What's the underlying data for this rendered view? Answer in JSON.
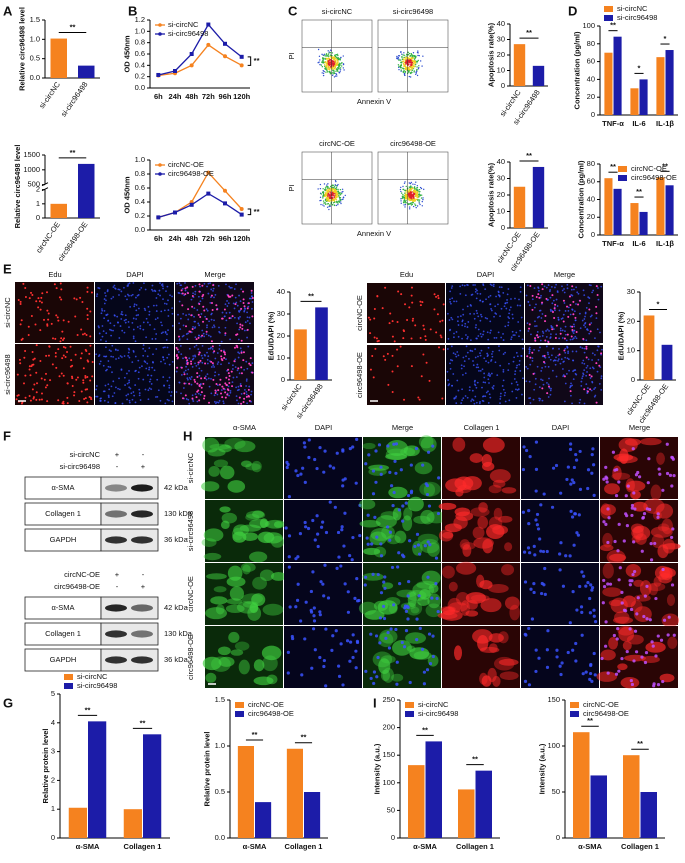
{
  "panel_letters": [
    "A",
    "B",
    "C",
    "D",
    "E",
    "F",
    "G",
    "H",
    "I"
  ],
  "chart_data": [
    {
      "type": "bar",
      "ylabel": "Relative circ96498 level",
      "categories": [
        "si-circNC",
        "si-circ96498"
      ],
      "values": [
        1.02,
        0.32
      ],
      "colors": [
        "#f5821f",
        "#1c1ca8"
      ],
      "ylim": [
        0,
        1.5
      ],
      "yticks": [
        {
          "value": 0,
          "label": "0.0"
        },
        0.5,
        {
          "value": 1,
          "label": "1.0"
        },
        1.5
      ],
      "annotations": "**"
    },
    {
      "type": "bar",
      "ylabel": "Relative circ96498 level",
      "categories": [
        "circNC-OE",
        "circ96498-OE"
      ],
      "values": [
        1,
        1200
      ],
      "colors": [
        "#f5821f",
        "#1c1ca8"
      ],
      "ylim": [
        0,
        1500
      ],
      "ybreak": [
        2,
        500
      ],
      "yticks": [
        0,
        1,
        2,
        500,
        1000,
        1500
      ],
      "annotations": "**"
    },
    {
      "type": "line",
      "ylabel": "OD 450nm",
      "categories": [
        "6h",
        "24h",
        "48h",
        "72h",
        "96h",
        "120h"
      ],
      "series": [
        {
          "name": "si-circNC",
          "color": "#f5821f",
          "values": [
            0.22,
            0.26,
            0.4,
            0.76,
            0.56,
            0.4
          ]
        },
        {
          "name": "si-circ96498",
          "color": "#1c1ca8",
          "values": [
            0.23,
            0.3,
            0.6,
            1.12,
            0.78,
            0.55
          ]
        }
      ],
      "ylim": [
        0,
        1.2
      ],
      "yticks": [
        {
          "value": 0,
          "label": "0.0"
        },
        0.2,
        0.4,
        0.6,
        0.8,
        {
          "value": 1,
          "label": "1.0"
        },
        1.2
      ],
      "annotations": "**",
      "legend": "upper left"
    },
    {
      "type": "line",
      "ylabel": "OD 450nm",
      "categories": [
        "6h",
        "24h",
        "48h",
        "72h",
        "96h",
        "120h"
      ],
      "series": [
        {
          "name": "circNC-OE",
          "color": "#f5821f",
          "values": [
            0.18,
            0.25,
            0.4,
            0.82,
            0.56,
            0.3
          ]
        },
        {
          "name": "circ96498-OE",
          "color": "#1c1ca8",
          "values": [
            0.18,
            0.25,
            0.36,
            0.52,
            0.38,
            0.22
          ]
        }
      ],
      "ylim": [
        0,
        1
      ],
      "yticks": [
        {
          "value": 0,
          "label": "0.0"
        },
        0.2,
        0.4,
        0.6,
        0.8,
        {
          "value": 1,
          "label": "1.0"
        }
      ],
      "annotations": "**",
      "legend": "upper left"
    },
    {
      "type": "bar",
      "ylabel": "Apoptosis rate(%)",
      "categories": [
        "si-circNC",
        "si-circ96498"
      ],
      "values": [
        27,
        13
      ],
      "colors": [
        "#f5821f",
        "#1c1ca8"
      ],
      "ylim": [
        0,
        40
      ],
      "yticks": [
        0,
        10,
        20,
        30,
        40
      ],
      "annotations": "**"
    },
    {
      "type": "bar",
      "ylabel": "Apoptosis rate(%)",
      "categories": [
        "circNC-OE",
        "circ96498-OE"
      ],
      "values": [
        25,
        37
      ],
      "colors": [
        "#f5821f",
        "#1c1ca8"
      ],
      "ylim": [
        0,
        40
      ],
      "yticks": [
        0,
        10,
        20,
        30,
        40
      ],
      "annotations": "**"
    },
    {
      "type": "bar",
      "ylabel": "Concentration (pg/ml)",
      "categories": [
        "TNF-α",
        "IL-6",
        "IL-1β"
      ],
      "series": [
        {
          "name": "si-circNC",
          "color": "#f5821f",
          "values": [
            70,
            30,
            65
          ]
        },
        {
          "name": "si-circ96498",
          "color": "#1c1ca8",
          "values": [
            88,
            40,
            73
          ]
        }
      ],
      "ylim": [
        0,
        100
      ],
      "yticks": [
        0,
        20,
        40,
        60,
        80,
        100
      ],
      "annotations": [
        "**",
        "*",
        "*"
      ],
      "legend": "above"
    },
    {
      "type": "bar",
      "ylabel": "Concentration (pg/ml)",
      "categories": [
        "TNF-α",
        "IL-6",
        "IL-1β"
      ],
      "series": [
        {
          "name": "circNC-OE",
          "color": "#f5821f",
          "values": [
            64,
            36,
            65
          ]
        },
        {
          "name": "circ96498-OE",
          "color": "#1c1ca8",
          "values": [
            52,
            26,
            56
          ]
        }
      ],
      "ylim": [
        0,
        80
      ],
      "yticks": [
        0,
        20,
        40,
        60,
        80
      ],
      "annotations": [
        "**",
        "**",
        "**"
      ],
      "legend": "upper right"
    },
    {
      "type": "bar",
      "ylabel": "EdU/DAPI (%)",
      "categories": [
        "si-circNC",
        "si-circ96498"
      ],
      "values": [
        23,
        33
      ],
      "colors": [
        "#f5821f",
        "#1c1ca8"
      ],
      "ylim": [
        0,
        40
      ],
      "yticks": [
        0,
        10,
        20,
        30,
        40
      ],
      "annotations": "**"
    },
    {
      "type": "bar",
      "ylabel": "EdU/DAPI (%)",
      "categories": [
        "circNC-OE",
        "circ96498-OE"
      ],
      "values": [
        22,
        12
      ],
      "colors": [
        "#f5821f",
        "#1c1ca8"
      ],
      "ylim": [
        0,
        30
      ],
      "yticks": [
        0,
        10,
        20,
        30
      ],
      "annotations": "*"
    },
    {
      "type": "bar",
      "ylabel": "Relative protein level",
      "categories": [
        "α-SMA",
        "Collagen 1"
      ],
      "series": [
        {
          "name": "si-circNC",
          "color": "#f5821f",
          "values": [
            1.05,
            1.0
          ]
        },
        {
          "name": "si-circ96498",
          "color": "#1c1ca8",
          "values": [
            4.05,
            3.6
          ]
        }
      ],
      "ylim": [
        0,
        5
      ],
      "yticks": [
        0,
        1,
        2,
        3,
        4,
        5
      ],
      "annotations": [
        "**",
        "**"
      ],
      "legend": "above"
    },
    {
      "type": "bar",
      "ylabel": "Relative protein level",
      "categories": [
        "α-SMA",
        "Collagen 1"
      ],
      "series": [
        {
          "name": "circNC-OE",
          "color": "#f5821f",
          "values": [
            1.0,
            0.97
          ]
        },
        {
          "name": "circ96498-OE",
          "color": "#1c1ca8",
          "values": [
            0.39,
            0.5
          ]
        }
      ],
      "ylim": [
        0,
        1.5
      ],
      "yticks": [
        {
          "value": 0,
          "label": "0.0"
        },
        0.5,
        {
          "value": 1,
          "label": "1.0"
        },
        1.5
      ],
      "annotations": [
        "**",
        "**"
      ],
      "legend": "upper left"
    },
    {
      "type": "bar",
      "ylabel": "Intensity (a.u.)",
      "categories": [
        "α-SMA",
        "Collagen 1"
      ],
      "series": [
        {
          "name": "si-circNC",
          "color": "#f5821f",
          "values": [
            132,
            88
          ]
        },
        {
          "name": "si-circ96498",
          "color": "#1c1ca8",
          "values": [
            175,
            122
          ]
        }
      ],
      "ylim": [
        0,
        250
      ],
      "yticks": [
        0,
        50,
        100,
        150,
        200,
        250
      ],
      "annotations": [
        "**",
        "**"
      ],
      "legend": "upper left"
    },
    {
      "type": "bar",
      "ylabel": "Intensity (a.u.)",
      "categories": [
        "α-SMA",
        "Collagen 1"
      ],
      "series": [
        {
          "name": "circNC-OE",
          "color": "#f5821f",
          "values": [
            115,
            90
          ]
        },
        {
          "name": "circ96498-OE",
          "color": "#1c1ca8",
          "values": [
            68,
            50
          ]
        }
      ],
      "ylim": [
        0,
        150
      ],
      "yticks": [
        0,
        50,
        100,
        150
      ],
      "annotations": [
        "**",
        "**"
      ],
      "legend": "upper left"
    }
  ],
  "flow_cytometry": {
    "samples": [
      "si-circNC",
      "si-circ96498",
      "circNC-OE",
      "circ96498-OE"
    ],
    "y_label": "PI",
    "x_label": "Annexin V"
  },
  "edu": {
    "stains": [
      "Edu",
      "DAPI",
      "Merge"
    ],
    "groups": [
      [
        "si-circNC",
        "si-circ96498"
      ],
      [
        "circNC-OE",
        "circ96498-OE"
      ]
    ]
  },
  "western": [
    {
      "conditions": [
        "si-circNC",
        "si-circ96498"
      ],
      "signs": [
        [
          "+",
          "-"
        ],
        [
          "-",
          "+"
        ]
      ],
      "proteins": [
        "α-SMA",
        "Collagen 1",
        "GAPDH"
      ],
      "sizes": [
        "42 kDa",
        "130 kDa",
        "36 kDa"
      ]
    },
    {
      "conditions": [
        "circNC-OE",
        "circ96498-OE"
      ],
      "signs": [
        [
          "+",
          "-"
        ],
        [
          "-",
          "+"
        ]
      ],
      "proteins": [
        "α-SMA",
        "Collagen 1",
        "GAPDH"
      ],
      "sizes": [
        "42 kDa",
        "130 kDa",
        "36 kDa"
      ]
    }
  ],
  "immunofluorescence": {
    "stains": [
      "α-SMA",
      "DAPI",
      "Merge",
      "Collagen 1",
      "DAPI",
      "Merge"
    ],
    "groups": [
      "si-circNC",
      "si-circ96498",
      "circNC-OE",
      "circ96498-OE"
    ]
  }
}
